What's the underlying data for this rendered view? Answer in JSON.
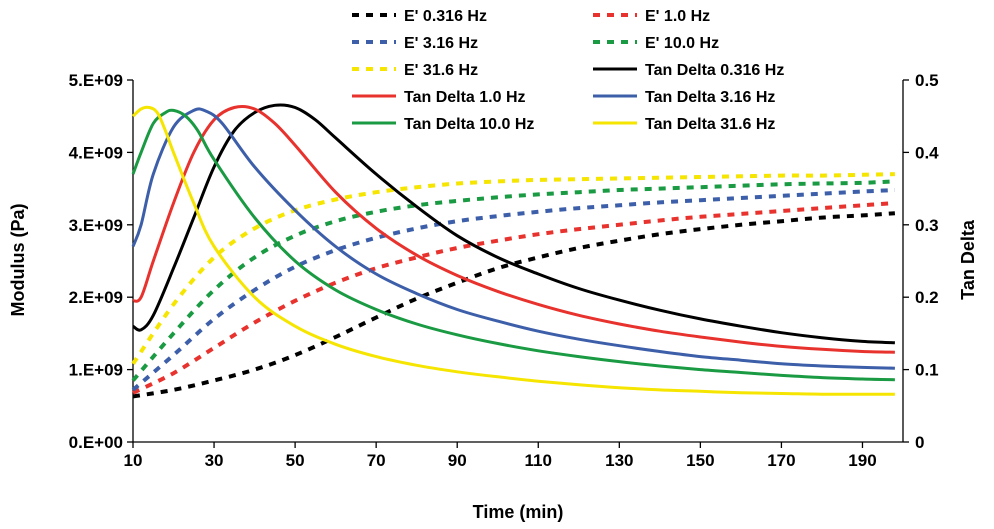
{
  "chart_data": {
    "type": "line",
    "title": "",
    "xlabel": "Time (min)",
    "ylabel": "Modulus (Pa)",
    "y2label": "Tan Delta",
    "xlim": [
      10,
      200
    ],
    "ylim": [
      0,
      5000000000
    ],
    "y2lim": [
      0,
      0.5
    ],
    "x_ticks": [
      "10",
      "30",
      "50",
      "70",
      "90",
      "110",
      "130",
      "150",
      "170",
      "190"
    ],
    "y_ticks": [
      "0.E+00",
      "1.E+09",
      "2.E+09",
      "3.E+09",
      "4.E+09",
      "5.E+09"
    ],
    "y2_ticks": [
      "0",
      "0.1",
      "0.2",
      "0.3",
      "0.4",
      "0.5"
    ],
    "grid": false,
    "legend_position": "top",
    "series": [
      {
        "name": "E' 0.316 Hz",
        "axis": "left",
        "style": "dashed",
        "color": "#000000",
        "x": [
          10,
          20,
          30,
          40,
          50,
          60,
          70,
          80,
          90,
          100,
          110,
          120,
          130,
          140,
          150,
          160,
          170,
          180,
          190,
          198
        ],
        "values": [
          630000000.0,
          720000000.0,
          850000000.0,
          1000000000.0,
          1200000000.0,
          1450000000.0,
          1720000000.0,
          1980000000.0,
          2200000000.0,
          2400000000.0,
          2550000000.0,
          2680000000.0,
          2780000000.0,
          2870000000.0,
          2940000000.0,
          3000000000.0,
          3050000000.0,
          3100000000.0,
          3130000000.0,
          3160000000.0
        ]
      },
      {
        "name": "E' 1.0 Hz",
        "axis": "left",
        "style": "dashed",
        "color": "#e8322d",
        "x": [
          10,
          20,
          30,
          40,
          50,
          60,
          70,
          80,
          90,
          100,
          110,
          120,
          130,
          140,
          150,
          160,
          170,
          180,
          190,
          198
        ],
        "values": [
          680000000.0,
          950000000.0,
          1300000000.0,
          1650000000.0,
          1950000000.0,
          2200000000.0,
          2400000000.0,
          2550000000.0,
          2680000000.0,
          2780000000.0,
          2870000000.0,
          2940000000.0,
          3000000000.0,
          3060000000.0,
          3110000000.0,
          3150000000.0,
          3190000000.0,
          3230000000.0,
          3270000000.0,
          3300000000.0
        ]
      },
      {
        "name": "E' 3.16 Hz",
        "axis": "left",
        "style": "dashed",
        "color": "#3d5fa9",
        "x": [
          10,
          20,
          30,
          40,
          50,
          60,
          70,
          80,
          90,
          100,
          110,
          120,
          130,
          140,
          150,
          160,
          170,
          180,
          190,
          198
        ],
        "values": [
          720000000.0,
          1200000000.0,
          1700000000.0,
          2100000000.0,
          2420000000.0,
          2650000000.0,
          2820000000.0,
          2950000000.0,
          3050000000.0,
          3120000000.0,
          3180000000.0,
          3230000000.0,
          3270000000.0,
          3310000000.0,
          3340000000.0,
          3370000000.0,
          3400000000.0,
          3430000000.0,
          3460000000.0,
          3480000000.0
        ]
      },
      {
        "name": "E' 10.0 Hz",
        "axis": "left",
        "style": "dashed",
        "color": "#1a9a42",
        "x": [
          10,
          20,
          30,
          40,
          50,
          60,
          70,
          80,
          90,
          100,
          110,
          120,
          130,
          140,
          150,
          160,
          170,
          180,
          190,
          198
        ],
        "values": [
          850000000.0,
          1500000000.0,
          2100000000.0,
          2550000000.0,
          2850000000.0,
          3050000000.0,
          3180000000.0,
          3270000000.0,
          3330000000.0,
          3380000000.0,
          3420000000.0,
          3450000000.0,
          3480000000.0,
          3500000000.0,
          3520000000.0,
          3540000000.0,
          3560000000.0,
          3570000000.0,
          3580000000.0,
          3600000000.0
        ]
      },
      {
        "name": "E' 31.6 Hz",
        "axis": "left",
        "style": "dashed",
        "color": "#f5e500",
        "x": [
          10,
          20,
          30,
          40,
          50,
          60,
          70,
          80,
          90,
          100,
          110,
          120,
          130,
          140,
          150,
          160,
          170,
          180,
          190,
          198
        ],
        "values": [
          1080000000.0,
          1900000000.0,
          2550000000.0,
          2950000000.0,
          3200000000.0,
          3350000000.0,
          3450000000.0,
          3520000000.0,
          3570000000.0,
          3600000000.0,
          3620000000.0,
          3630000000.0,
          3640000000.0,
          3650000000.0,
          3660000000.0,
          3670000000.0,
          3680000000.0,
          3680000000.0,
          3690000000.0,
          3700000000.0
        ]
      },
      {
        "name": "Tan Delta 0.316 Hz",
        "axis": "right",
        "style": "solid",
        "color": "#000000",
        "x": [
          10,
          12,
          15,
          20,
          25,
          30,
          35,
          40,
          45,
          50,
          55,
          60,
          70,
          80,
          90,
          100,
          110,
          120,
          130,
          140,
          150,
          160,
          170,
          180,
          190,
          198
        ],
        "values": [
          0.16,
          0.155,
          0.175,
          0.24,
          0.31,
          0.38,
          0.43,
          0.455,
          0.465,
          0.462,
          0.445,
          0.42,
          0.37,
          0.325,
          0.285,
          0.255,
          0.232,
          0.212,
          0.196,
          0.182,
          0.17,
          0.16,
          0.151,
          0.144,
          0.139,
          0.137
        ]
      },
      {
        "name": "Tan Delta 1.0 Hz",
        "axis": "right",
        "style": "solid",
        "color": "#e8322d",
        "x": [
          10,
          12,
          15,
          20,
          25,
          30,
          35,
          40,
          45,
          50,
          60,
          70,
          80,
          90,
          100,
          110,
          120,
          130,
          140,
          150,
          160,
          170,
          180,
          190,
          198
        ],
        "values": [
          0.195,
          0.2,
          0.25,
          0.33,
          0.4,
          0.445,
          0.462,
          0.46,
          0.44,
          0.41,
          0.345,
          0.295,
          0.258,
          0.23,
          0.208,
          0.19,
          0.175,
          0.163,
          0.153,
          0.145,
          0.138,
          0.132,
          0.128,
          0.125,
          0.124
        ]
      },
      {
        "name": "Tan Delta 3.16 Hz",
        "axis": "right",
        "style": "solid",
        "color": "#3d5fa9",
        "x": [
          10,
          12,
          15,
          20,
          25,
          28,
          32,
          40,
          50,
          60,
          70,
          80,
          90,
          100,
          110,
          120,
          130,
          140,
          150,
          160,
          170,
          180,
          190,
          198
        ],
        "values": [
          0.27,
          0.3,
          0.37,
          0.435,
          0.458,
          0.457,
          0.44,
          0.38,
          0.32,
          0.27,
          0.232,
          0.205,
          0.183,
          0.167,
          0.153,
          0.142,
          0.133,
          0.125,
          0.118,
          0.113,
          0.108,
          0.105,
          0.103,
          0.102
        ]
      },
      {
        "name": "Tan Delta 10.0 Hz",
        "axis": "right",
        "style": "solid",
        "color": "#1a9a42",
        "x": [
          10,
          12,
          15,
          18,
          20,
          23,
          26,
          30,
          40,
          50,
          60,
          70,
          80,
          90,
          100,
          110,
          120,
          130,
          140,
          150,
          160,
          170,
          180,
          190,
          198
        ],
        "values": [
          0.37,
          0.4,
          0.44,
          0.455,
          0.458,
          0.45,
          0.43,
          0.39,
          0.31,
          0.25,
          0.21,
          0.183,
          0.163,
          0.148,
          0.136,
          0.126,
          0.118,
          0.111,
          0.105,
          0.1,
          0.096,
          0.092,
          0.089,
          0.087,
          0.086
        ]
      },
      {
        "name": "Tan Delta 31.6 Hz",
        "axis": "right",
        "style": "solid",
        "color": "#f5e500",
        "x": [
          10,
          12,
          14,
          16,
          18,
          20,
          25,
          30,
          40,
          50,
          60,
          70,
          80,
          90,
          100,
          110,
          120,
          130,
          140,
          150,
          160,
          170,
          180,
          190,
          198
        ],
        "values": [
          0.45,
          0.46,
          0.462,
          0.455,
          0.43,
          0.4,
          0.33,
          0.27,
          0.2,
          0.16,
          0.135,
          0.118,
          0.106,
          0.097,
          0.09,
          0.084,
          0.079,
          0.075,
          0.072,
          0.07,
          0.068,
          0.067,
          0.066,
          0.066,
          0.066
        ]
      }
    ]
  }
}
